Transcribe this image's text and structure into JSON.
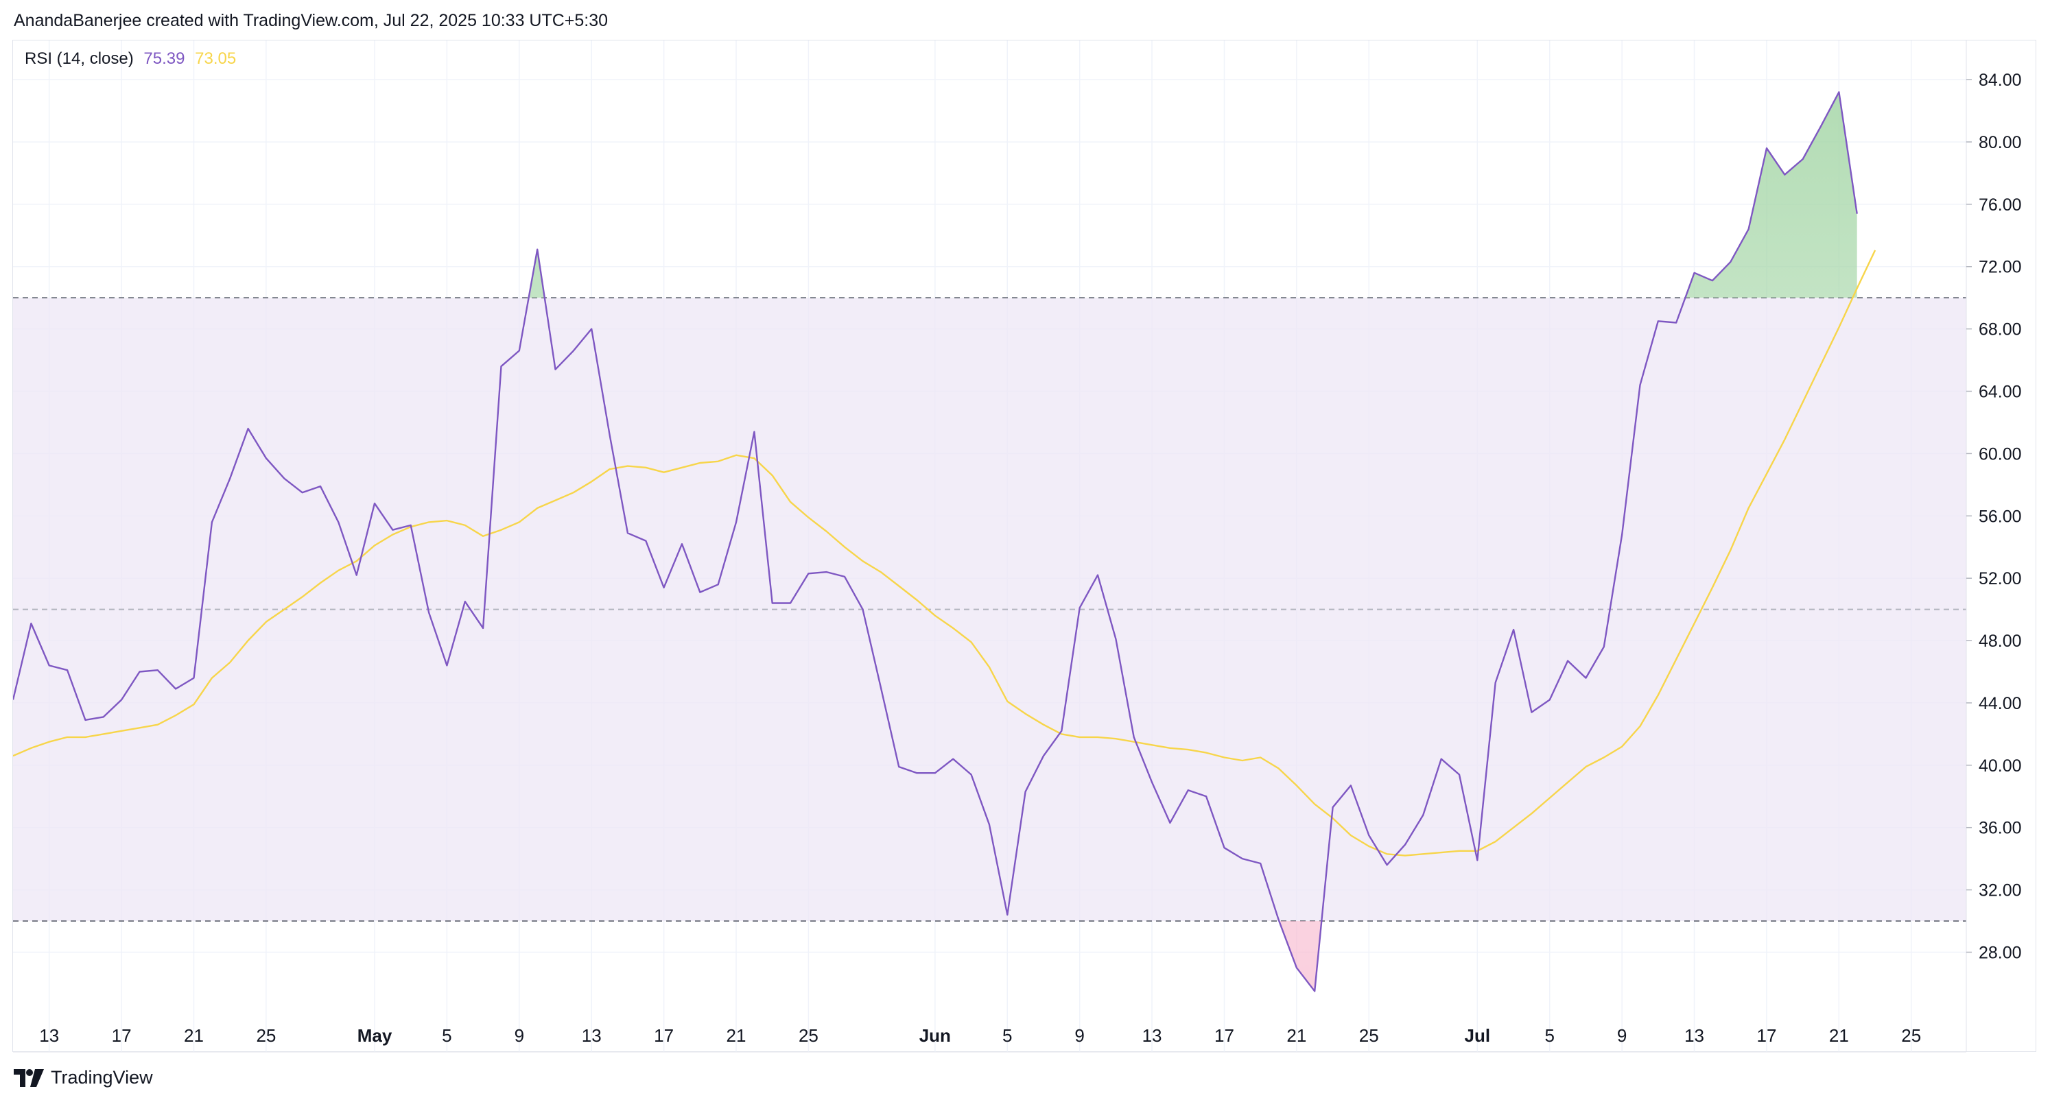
{
  "header": {
    "attribution": "AnandaBanerjee created with TradingView.com, Jul 22, 2025 10:33 UTC+5:30"
  },
  "legend": {
    "label": "RSI (14, close)",
    "rsi_value": "75.39",
    "ma_value": "73.05"
  },
  "footer": {
    "brand": "TradingView"
  },
  "colors": {
    "rsi": "#7e57c2",
    "ma": "#f7d54a",
    "band": "#ede7f6",
    "overbought_fill": "#a5d6a7",
    "oversold_fill": "#f8d7da",
    "grid": "#f0f3fa"
  },
  "chart_data": {
    "type": "line",
    "y_ticks": [
      28,
      32,
      36,
      40,
      44,
      48,
      52,
      56,
      60,
      64,
      68,
      72,
      76,
      80,
      84
    ],
    "ylim": [
      24.5,
      85.5
    ],
    "levels": {
      "upper": 70,
      "middle": 50,
      "lower": 30
    },
    "x_ticks": [
      {
        "i": 2,
        "label": "13"
      },
      {
        "i": 6,
        "label": "17"
      },
      {
        "i": 10,
        "label": "21"
      },
      {
        "i": 14,
        "label": "25"
      },
      {
        "i": 20,
        "label": "May"
      },
      {
        "i": 24,
        "label": "5"
      },
      {
        "i": 28,
        "label": "9"
      },
      {
        "i": 32,
        "label": "13"
      },
      {
        "i": 36,
        "label": "17"
      },
      {
        "i": 40,
        "label": "21"
      },
      {
        "i": 44,
        "label": "25"
      },
      {
        "i": 51,
        "label": "Jun"
      },
      {
        "i": 55,
        "label": "5"
      },
      {
        "i": 59,
        "label": "9"
      },
      {
        "i": 63,
        "label": "13"
      },
      {
        "i": 67,
        "label": "17"
      },
      {
        "i": 71,
        "label": "21"
      },
      {
        "i": 75,
        "label": "25"
      },
      {
        "i": 81,
        "label": "Jul"
      },
      {
        "i": 85,
        "label": "5"
      },
      {
        "i": 89,
        "label": "9"
      },
      {
        "i": 93,
        "label": "13"
      },
      {
        "i": 97,
        "label": "17"
      },
      {
        "i": 101,
        "label": "21"
      },
      {
        "i": 105,
        "label": "25"
      }
    ],
    "x_max_index": 107,
    "series": [
      {
        "key": "rsi",
        "values": [
          44.2,
          49.1,
          46.4,
          46.1,
          42.9,
          43.1,
          44.2,
          46.0,
          46.1,
          44.9,
          45.6,
          55.6,
          58.4,
          61.6,
          59.7,
          58.4,
          57.5,
          57.9,
          55.6,
          52.2,
          56.8,
          55.1,
          55.4,
          49.8,
          46.4,
          50.5,
          48.8,
          65.6,
          66.6,
          73.1,
          65.4,
          66.6,
          68.0,
          61.2,
          54.9,
          54.4,
          51.4,
          54.2,
          51.1,
          51.6,
          55.6,
          61.4,
          50.4,
          50.4,
          52.3,
          52.4,
          52.1,
          50.0,
          45.0,
          39.9,
          39.5,
          39.5,
          40.4,
          39.4,
          36.2,
          30.4,
          38.3,
          40.6,
          42.2,
          50.1,
          52.2,
          48.1,
          41.8,
          38.9,
          36.3,
          38.4,
          38.0,
          34.7,
          34.0,
          33.7,
          30.1,
          27.0,
          25.5,
          37.3,
          38.7,
          35.5,
          33.6,
          34.9,
          36.8,
          40.4,
          39.4,
          33.9,
          45.3,
          48.7,
          43.4,
          44.2,
          46.7,
          45.6,
          47.6,
          54.8,
          64.4,
          68.5,
          68.4,
          71.6,
          71.1,
          72.3,
          74.4,
          79.6,
          77.9,
          78.9,
          81.0,
          83.2,
          75.39
        ]
      },
      {
        "key": "ma",
        "values": [
          40.6,
          41.1,
          41.5,
          41.8,
          41.8,
          42.0,
          42.2,
          42.4,
          42.6,
          43.2,
          43.9,
          45.6,
          46.6,
          48.0,
          49.2,
          50.0,
          50.8,
          51.7,
          52.5,
          53.1,
          54.1,
          54.8,
          55.3,
          55.6,
          55.7,
          55.4,
          54.7,
          55.1,
          55.6,
          56.5,
          57.0,
          57.5,
          58.2,
          59.0,
          59.2,
          59.1,
          58.8,
          59.1,
          59.4,
          59.5,
          59.9,
          59.7,
          58.6,
          56.9,
          55.9,
          55.0,
          54.0,
          53.1,
          52.4,
          51.5,
          50.6,
          49.6,
          48.8,
          47.9,
          46.3,
          44.1,
          43.3,
          42.6,
          42.0,
          41.8,
          41.8,
          41.7,
          41.5,
          41.3,
          41.1,
          41.0,
          40.8,
          40.5,
          40.3,
          40.5,
          39.8,
          38.7,
          37.5,
          36.6,
          35.5,
          34.8,
          34.3,
          34.2,
          34.3,
          34.4,
          34.5,
          34.5,
          35.1,
          36.0,
          36.9,
          37.9,
          38.9,
          39.9,
          40.5,
          41.2,
          42.5,
          44.5,
          46.8,
          49.1,
          51.4,
          53.8,
          56.5,
          58.7,
          60.9,
          63.3,
          65.7,
          68.1,
          70.6,
          73.05
        ]
      }
    ]
  }
}
